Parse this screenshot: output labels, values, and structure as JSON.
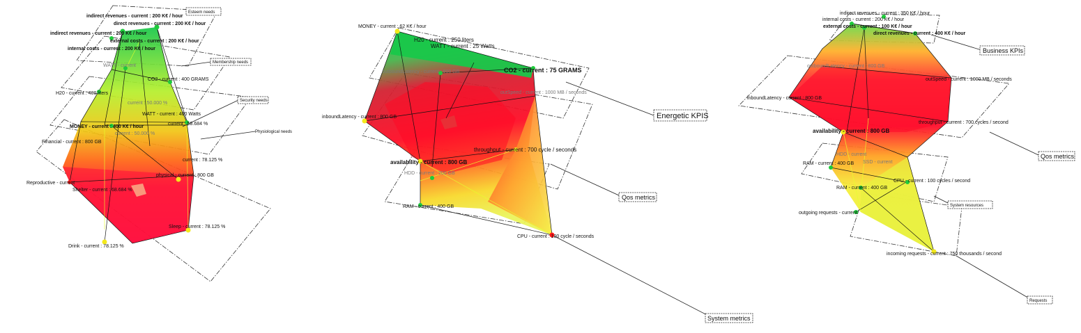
{
  "colors": {
    "green": "#19c74a",
    "yellow": "#eef20c",
    "red": "#ff0c2a",
    "vertex_green": "#1ecb3b",
    "vertex_yellow": "#f3e91c",
    "vertex_red": "#ff1a1a"
  },
  "diagrams": [
    {
      "tags": [
        "Esteem needs",
        "Membership needs",
        "Security needs",
        "Physiological needs"
      ],
      "labels": [
        "indirect revenues - current : 200 K€ / hour",
        "direct revenues - current : 200 K€ / hour",
        "indirect revenues - current : 200 K€ / hour",
        "external costs - current : 200 K€ / hour",
        "internal costs - current : 200 K€ / hour",
        "WATT - current",
        "CO2 - current : 400 GRAMS",
        "H20 - current : 400 liters",
        "current : 50.000 %",
        "WATT - current : 400 Watts",
        "MONEY - current : 400 K€ / hour",
        "current : 58.684 %",
        "current : 50.000 %",
        "Financial - current : 800 GB",
        "current : 78.125 %",
        "Reproductive - current",
        "Shelter - current : 68.684 %",
        "physical - current : 800 GB",
        "Drink - current : 78.125 %",
        "Sleep - current : 78.125 %"
      ]
    },
    {
      "tags": [
        "Energetic KPIS",
        "Qos metrics",
        "System metrics"
      ],
      "labels": [
        "MONEY - current : 62 K€ / hour",
        "H20 - current : 250 liters",
        "WATT - current : 25 Watts",
        "outboundLatency - current : 800 GB",
        "CO2 - current : 75 GRAMS",
        "outSpeed - current : 1000 MB / seconds",
        "inboundLatency - current : 800 GB",
        "throughput - current : 700 cycle / seconds",
        "availability - current : 800 GB",
        "HDD - current : 200 GB",
        "RAM - current : 400 GB",
        "CPU - current : 100 cycle / seconds"
      ]
    },
    {
      "tags": [
        "Business KPIs",
        "Qos metrics",
        "System resources",
        "Requests"
      ],
      "labels": [
        "indirect revenues - current : 350 K€ / hour",
        "internal costs - current : 200 K€ / hour",
        "external costs - current : 100 K€ / hour",
        "direct revenues - current : 400 K€ / hour",
        "outboundLatency - current : 800 GB",
        "outSpeed - current : 1000 MB / seconds",
        "inboundLatency - current : 800 GB",
        "availability - current : 800 GB",
        "throughput - current : 700 cycles / second",
        "HDD - current",
        "RAM - current : 400 GB",
        "SSD - current",
        "RAM - current : 400 GB",
        "CPU - current : 100 cycles / second",
        "outgoing requests - current",
        "incoming requests - current : 750 thousands / second"
      ]
    }
  ]
}
